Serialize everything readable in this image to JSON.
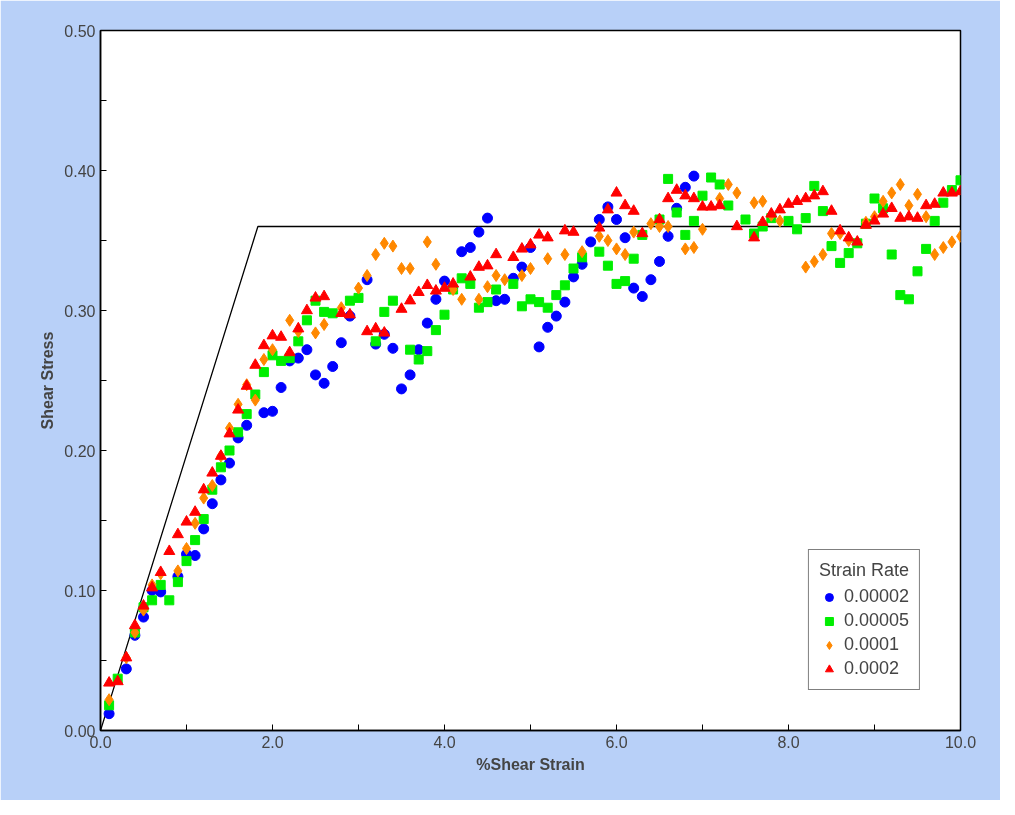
{
  "chart_data": {
    "type": "scatter",
    "xlabel": "%Shear Strain",
    "ylabel": "Shear Stress",
    "legend_title": "Strain Rate",
    "legend": "bottom right",
    "grid": false,
    "xlim": [
      0,
      10
    ],
    "ylim": [
      0,
      0.5
    ],
    "xticks": [
      {
        "value": 0,
        "label": "0.0"
      },
      {
        "value": 1,
        "label": null
      },
      {
        "value": 2,
        "label": "2.0"
      },
      {
        "value": 3,
        "label": null
      },
      {
        "value": 4,
        "label": "4.0"
      },
      {
        "value": 5,
        "label": null
      },
      {
        "value": 6,
        "label": "6.0"
      },
      {
        "value": 7,
        "label": null
      },
      {
        "value": 8,
        "label": "8.0"
      },
      {
        "value": 9,
        "label": null
      },
      {
        "value": 10,
        "label": "10.0"
      }
    ],
    "yticks": [
      {
        "value": 0,
        "label": "0.00"
      },
      {
        "value": 0.05,
        "label": null
      },
      {
        "value": 0.1,
        "label": "0.10"
      },
      {
        "value": 0.15,
        "label": null
      },
      {
        "value": 0.2,
        "label": "0.20"
      },
      {
        "value": 0.25,
        "label": null
      },
      {
        "value": 0.3,
        "label": "0.30"
      },
      {
        "value": 0.35,
        "label": null
      },
      {
        "value": 0.4,
        "label": "0.40"
      },
      {
        "value": 0.45,
        "label": null
      },
      {
        "value": 0.5,
        "label": "0.50"
      }
    ],
    "series": [
      {
        "type": "line",
        "color": "#000000",
        "marker": "none",
        "line_style": "solid",
        "x": [
          0,
          1.83,
          10
        ],
        "values": [
          0,
          0.36,
          0.36
        ]
      },
      {
        "name": "0.00002",
        "color": "#0000ff",
        "marker": "circle",
        "x": [
          0.1,
          0.3,
          0.4,
          0.5,
          0.6,
          0.7,
          0.9,
          1.0,
          1.1,
          1.2,
          1.3,
          1.4,
          1.5,
          1.6,
          1.7,
          1.9,
          2.0,
          2.1,
          2.2,
          2.3,
          2.4,
          2.5,
          2.6,
          2.7,
          2.8,
          2.9,
          3.1,
          3.2,
          3.3,
          3.4,
          3.5,
          3.6,
          3.7,
          3.8,
          3.9,
          4.0,
          4.2,
          4.3,
          4.4,
          4.5,
          4.6,
          4.7,
          4.8,
          4.9,
          5.0,
          5.1,
          5.2,
          5.3,
          5.4,
          5.5,
          5.6,
          5.7,
          5.8,
          5.9,
          6.0,
          6.1,
          6.2,
          6.3,
          6.4,
          6.5,
          6.6,
          6.7,
          6.8,
          6.9
        ],
        "values": [
          0.012,
          0.044,
          0.068,
          0.081,
          0.1,
          0.099,
          0.11,
          0.126,
          0.125,
          0.144,
          0.162,
          0.179,
          0.191,
          0.209,
          0.218,
          0.227,
          0.228,
          0.245,
          0.264,
          0.266,
          0.272,
          0.254,
          0.248,
          0.26,
          0.277,
          0.296,
          0.322,
          0.276,
          0.283,
          0.273,
          0.244,
          0.254,
          0.272,
          0.291,
          0.308,
          0.321,
          0.342,
          0.345,
          0.356,
          0.366,
          0.307,
          0.308,
          0.323,
          0.331,
          0.345,
          0.274,
          0.288,
          0.296,
          0.306,
          0.324,
          0.333,
          0.349,
          0.365,
          0.374,
          0.365,
          0.352,
          0.316,
          0.31,
          0.322,
          0.335,
          0.353,
          0.373,
          0.388,
          0.396
        ]
      },
      {
        "name": "0.00005",
        "color": "#00ee00",
        "marker": "square",
        "x": [
          0.1,
          0.2,
          0.4,
          0.5,
          0.6,
          0.7,
          0.8,
          0.9,
          1.0,
          1.1,
          1.2,
          1.3,
          1.4,
          1.5,
          1.6,
          1.7,
          1.8,
          1.9,
          2.0,
          2.1,
          2.2,
          2.3,
          2.4,
          2.5,
          2.6,
          2.7,
          2.9,
          3.0,
          3.2,
          3.3,
          3.4,
          3.6,
          3.7,
          3.8,
          3.9,
          4.0,
          4.1,
          4.2,
          4.3,
          4.4,
          4.5,
          4.6,
          4.8,
          4.9,
          5.0,
          5.1,
          5.2,
          5.3,
          5.4,
          5.5,
          5.6,
          5.8,
          5.9,
          6.0,
          6.1,
          6.2,
          6.3,
          6.5,
          6.6,
          6.7,
          6.8,
          6.9,
          7.0,
          7.1,
          7.2,
          7.3,
          7.5,
          7.6,
          7.7,
          7.8,
          8.0,
          8.1,
          8.2,
          8.3,
          8.4,
          8.5,
          8.6,
          8.7,
          8.8,
          8.9,
          9.0,
          9.1,
          9.2,
          9.3,
          9.4,
          9.5,
          9.6,
          9.7,
          9.8,
          9.9,
          10.0
        ],
        "values": [
          0.018,
          0.037,
          0.07,
          0.088,
          0.093,
          0.104,
          0.093,
          0.106,
          0.121,
          0.136,
          0.151,
          0.172,
          0.188,
          0.2,
          0.213,
          0.226,
          0.24,
          0.256,
          0.268,
          0.264,
          0.266,
          0.278,
          0.293,
          0.307,
          0.299,
          0.298,
          0.307,
          0.309,
          0.278,
          0.299,
          0.307,
          0.272,
          0.265,
          0.271,
          0.286,
          0.297,
          0.315,
          0.323,
          0.319,
          0.302,
          0.306,
          0.315,
          0.319,
          0.303,
          0.308,
          0.306,
          0.302,
          0.311,
          0.318,
          0.33,
          0.338,
          0.342,
          0.332,
          0.319,
          0.321,
          0.337,
          0.354,
          0.365,
          0.394,
          0.37,
          0.354,
          0.364,
          0.382,
          0.395,
          0.39,
          0.375,
          0.365,
          0.355,
          0.36,
          0.366,
          0.364,
          0.358,
          0.366,
          0.389,
          0.371,
          0.346,
          0.334,
          0.341,
          0.348,
          0.362,
          0.38,
          0.373,
          0.34,
          0.311,
          0.308,
          0.328,
          0.344,
          0.364,
          0.377,
          0.386,
          0.393
        ]
      },
      {
        "name": "0.0001",
        "color": "#ff8800",
        "marker": "diamond",
        "x": [
          0.1,
          0.3,
          0.4,
          0.5,
          0.6,
          0.7,
          0.9,
          1.0,
          1.1,
          1.2,
          1.3,
          1.4,
          1.5,
          1.6,
          1.7,
          1.8,
          1.9,
          2.0,
          2.2,
          2.3,
          2.5,
          2.6,
          2.8,
          3.0,
          3.1,
          3.2,
          3.3,
          3.4,
          3.5,
          3.6,
          3.8,
          3.9,
          4.1,
          4.2,
          4.4,
          4.5,
          4.6,
          4.7,
          4.9,
          5.0,
          5.2,
          5.4,
          5.6,
          5.8,
          5.9,
          6.0,
          6.1,
          6.2,
          6.4,
          6.5,
          6.6,
          6.8,
          6.9,
          7.0,
          7.2,
          7.3,
          7.4,
          7.6,
          7.7,
          7.8,
          7.9,
          8.2,
          8.3,
          8.4,
          8.5,
          8.6,
          8.7,
          8.9,
          9.0,
          9.1,
          9.2,
          9.3,
          9.4,
          9.5,
          9.6,
          9.7,
          9.8,
          9.9,
          10.0
        ],
        "values": [
          0.022,
          0.052,
          0.07,
          0.086,
          0.104,
          0.112,
          0.114,
          0.13,
          0.148,
          0.166,
          0.175,
          0.196,
          0.216,
          0.233,
          0.247,
          0.236,
          0.265,
          0.272,
          0.293,
          0.285,
          0.284,
          0.29,
          0.302,
          0.316,
          0.325,
          0.34,
          0.348,
          0.346,
          0.33,
          0.33,
          0.349,
          0.333,
          0.315,
          0.308,
          0.308,
          0.317,
          0.325,
          0.322,
          0.325,
          0.33,
          0.337,
          0.34,
          0.342,
          0.353,
          0.35,
          0.344,
          0.34,
          0.356,
          0.362,
          0.36,
          0.36,
          0.344,
          0.345,
          0.358,
          0.38,
          0.39,
          0.384,
          0.377,
          0.378,
          0.368,
          0.364,
          0.331,
          0.335,
          0.34,
          0.355,
          0.355,
          0.35,
          0.363,
          0.367,
          0.378,
          0.384,
          0.39,
          0.375,
          0.383,
          0.367,
          0.34,
          0.345,
          0.349,
          0.353
        ]
      },
      {
        "name": "0.0002",
        "color": "#ff0000",
        "marker": "triangle",
        "x": [
          0.1,
          0.2,
          0.3,
          0.4,
          0.5,
          0.6,
          0.7,
          0.8,
          0.9,
          1.0,
          1.1,
          1.2,
          1.3,
          1.4,
          1.5,
          1.6,
          1.7,
          1.8,
          1.9,
          2.0,
          2.1,
          2.2,
          2.3,
          2.4,
          2.5,
          2.6,
          2.8,
          2.9,
          3.1,
          3.2,
          3.3,
          3.5,
          3.6,
          3.7,
          3.8,
          3.9,
          4.0,
          4.1,
          4.3,
          4.4,
          4.5,
          4.6,
          4.8,
          4.9,
          5.0,
          5.1,
          5.2,
          5.4,
          5.5,
          5.8,
          5.9,
          6.0,
          6.1,
          6.2,
          6.3,
          6.5,
          6.6,
          6.7,
          6.8,
          6.9,
          7.0,
          7.1,
          7.2,
          7.4,
          7.6,
          7.7,
          7.8,
          7.9,
          8.0,
          8.1,
          8.2,
          8.3,
          8.4,
          8.5,
          8.6,
          8.7,
          8.8,
          8.9,
          9.0,
          9.1,
          9.2,
          9.3,
          9.4,
          9.5,
          9.6,
          9.7,
          9.8,
          9.9,
          10.0
        ],
        "values": [
          0.034,
          0.035,
          0.052,
          0.075,
          0.089,
          0.102,
          0.113,
          0.128,
          0.14,
          0.149,
          0.156,
          0.172,
          0.184,
          0.196,
          0.212,
          0.229,
          0.246,
          0.261,
          0.275,
          0.282,
          0.281,
          0.27,
          0.287,
          0.3,
          0.309,
          0.31,
          0.298,
          0.297,
          0.285,
          0.287,
          0.284,
          0.301,
          0.307,
          0.313,
          0.318,
          0.314,
          0.316,
          0.319,
          0.324,
          0.331,
          0.332,
          0.34,
          0.338,
          0.344,
          0.347,
          0.354,
          0.352,
          0.357,
          0.356,
          0.359,
          0.372,
          0.384,
          0.375,
          0.371,
          0.355,
          0.365,
          0.38,
          0.386,
          0.382,
          0.38,
          0.374,
          0.374,
          0.375,
          0.36,
          0.352,
          0.363,
          0.369,
          0.372,
          0.376,
          0.378,
          0.38,
          0.382,
          0.385,
          0.371,
          0.357,
          0.352,
          0.349,
          0.361,
          0.364,
          0.369,
          0.373,
          0.366,
          0.367,
          0.366,
          0.375,
          0.376,
          0.384,
          0.384,
          0.385
        ]
      }
    ]
  }
}
